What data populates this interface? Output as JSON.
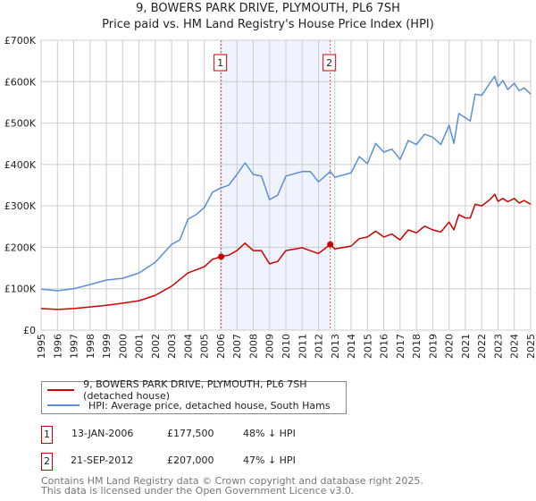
{
  "title": "9, BOWERS PARK DRIVE, PLYMOUTH, PL6 7SH",
  "subtitle": "Price paid vs. HM Land Registry's House Price Index (HPI)",
  "chart_data": {
    "type": "line",
    "title": "9, BOWERS PARK DRIVE, PLYMOUTH, PL6 7SH",
    "subtitle": "Price paid vs. HM Land Registry's House Price Index (HPI)",
    "xlim": [
      1995,
      2025
    ],
    "ylim": [
      0,
      700000
    ],
    "grid": true,
    "y_ticks": [
      0,
      100000,
      200000,
      300000,
      400000,
      500000,
      600000,
      700000
    ],
    "y_tick_labels": [
      "£0",
      "£100K",
      "£200K",
      "£300K",
      "£400K",
      "£500K",
      "£600K",
      "£700K"
    ],
    "x_ticks": [
      1995,
      1996,
      1997,
      1998,
      1999,
      2000,
      2001,
      2002,
      2003,
      2004,
      2005,
      2006,
      2007,
      2008,
      2009,
      2010,
      2011,
      2012,
      2013,
      2014,
      2015,
      2016,
      2017,
      2018,
      2019,
      2020,
      2021,
      2022,
      2023,
      2024,
      2025
    ],
    "x_tick_labels": [
      "1995",
      "1996",
      "1997",
      "1998",
      "1999",
      "2000",
      "2001",
      "2002",
      "2003",
      "2004",
      "2005",
      "2006",
      "2007",
      "2008",
      "2009",
      "2010",
      "2011",
      "2012",
      "2013",
      "2014",
      "2015",
      "2016",
      "2017",
      "2018",
      "2019",
      "2020",
      "2021",
      "2022",
      "2023",
      "2024",
      "2025"
    ],
    "shaded_range": [
      2006.04,
      2012.72
    ],
    "series": [
      {
        "name": "9, BOWERS PARK DRIVE, PLYMOUTH, PL6 7SH (detached house)",
        "color": "#cc0000",
        "x": [
          1995,
          1996,
          1997,
          1998,
          1999,
          2000,
          2001,
          2002,
          2003,
          2004,
          2005,
          2005.5,
          2006.04,
          2006.5,
          2007,
          2007.5,
          2008,
          2008.5,
          2009,
          2009.5,
          2010,
          2011,
          2012,
          2012.72,
          2013,
          2014,
          2014.5,
          2015,
          2015.5,
          2016,
          2016.5,
          2017,
          2017.5,
          2018,
          2018.5,
          2019,
          2019.5,
          2020,
          2020.3,
          2020.6,
          2021,
          2021.3,
          2021.6,
          2022,
          2022.5,
          2022.8,
          2023,
          2023.3,
          2023.6,
          2024,
          2024.3,
          2024.6,
          2025
        ],
        "values": [
          52000,
          50000,
          52000,
          56000,
          60000,
          65000,
          71000,
          84000,
          106000,
          138000,
          153000,
          171000,
          177500,
          181000,
          192000,
          210000,
          192000,
          192000,
          160000,
          166000,
          192000,
          199000,
          185000,
          207000,
          196000,
          203000,
          221000,
          225000,
          239000,
          225000,
          232000,
          218000,
          242000,
          235000,
          251000,
          242000,
          237000,
          261000,
          242000,
          279000,
          271000,
          271000,
          304000,
          300000,
          315000,
          328000,
          311000,
          318000,
          310000,
          318000,
          307000,
          313000,
          304000
        ]
      },
      {
        "name": "HPI: Average price, detached house, South Hams",
        "color": "#5b8fd4",
        "x": [
          1995,
          1996,
          1997,
          1998,
          1999,
          2000,
          2001,
          2002,
          2003,
          2003.5,
          2004,
          2004.5,
          2005,
          2005.5,
          2006,
          2006.5,
          2007,
          2007.5,
          2008,
          2008.5,
          2009,
          2009.5,
          2010,
          2011,
          2011.5,
          2012,
          2012.72,
          2013,
          2014,
          2014.5,
          2015,
          2015.5,
          2016,
          2016.5,
          2017,
          2017.5,
          2018,
          2018.5,
          2019,
          2019.5,
          2020,
          2020.3,
          2020.6,
          2021,
          2021.3,
          2021.6,
          2022,
          2022.5,
          2022.8,
          2023,
          2023.3,
          2023.6,
          2024,
          2024.3,
          2024.6,
          2025
        ],
        "values": [
          99000,
          95000,
          100000,
          110000,
          121000,
          125000,
          138000,
          164000,
          207000,
          218000,
          268000,
          279000,
          296000,
          333000,
          343000,
          350000,
          376000,
          404000,
          376000,
          372000,
          315000,
          326000,
          372000,
          383000,
          383000,
          358000,
          383000,
          369000,
          380000,
          419000,
          402000,
          451000,
          430000,
          437000,
          412000,
          458000,
          448000,
          473000,
          466000,
          448000,
          495000,
          451000,
          523000,
          513000,
          505000,
          570000,
          567000,
          596000,
          613000,
          588000,
          603000,
          581000,
          596000,
          578000,
          585000,
          570000
        ]
      }
    ],
    "markers": [
      {
        "label": "1",
        "x": 2006.04,
        "value": 177500
      },
      {
        "label": "2",
        "x": 2012.72,
        "value": 207000
      }
    ]
  },
  "legend": {
    "property": "9, BOWERS PARK DRIVE, PLYMOUTH, PL6 7SH (detached house)",
    "hpi": "HPI: Average price, detached house, South Hams"
  },
  "transactions": [
    {
      "num": "1",
      "date": "13-JAN-2006",
      "price": "£177,500",
      "diff": "48% ↓ HPI"
    },
    {
      "num": "2",
      "date": "21-SEP-2012",
      "price": "£207,000",
      "diff": "47% ↓ HPI"
    }
  ],
  "footer": {
    "line1": "Contains HM Land Registry data © Crown copyright and database right 2025.",
    "line2": "This data is licensed under the Open Government Licence v3.0."
  }
}
